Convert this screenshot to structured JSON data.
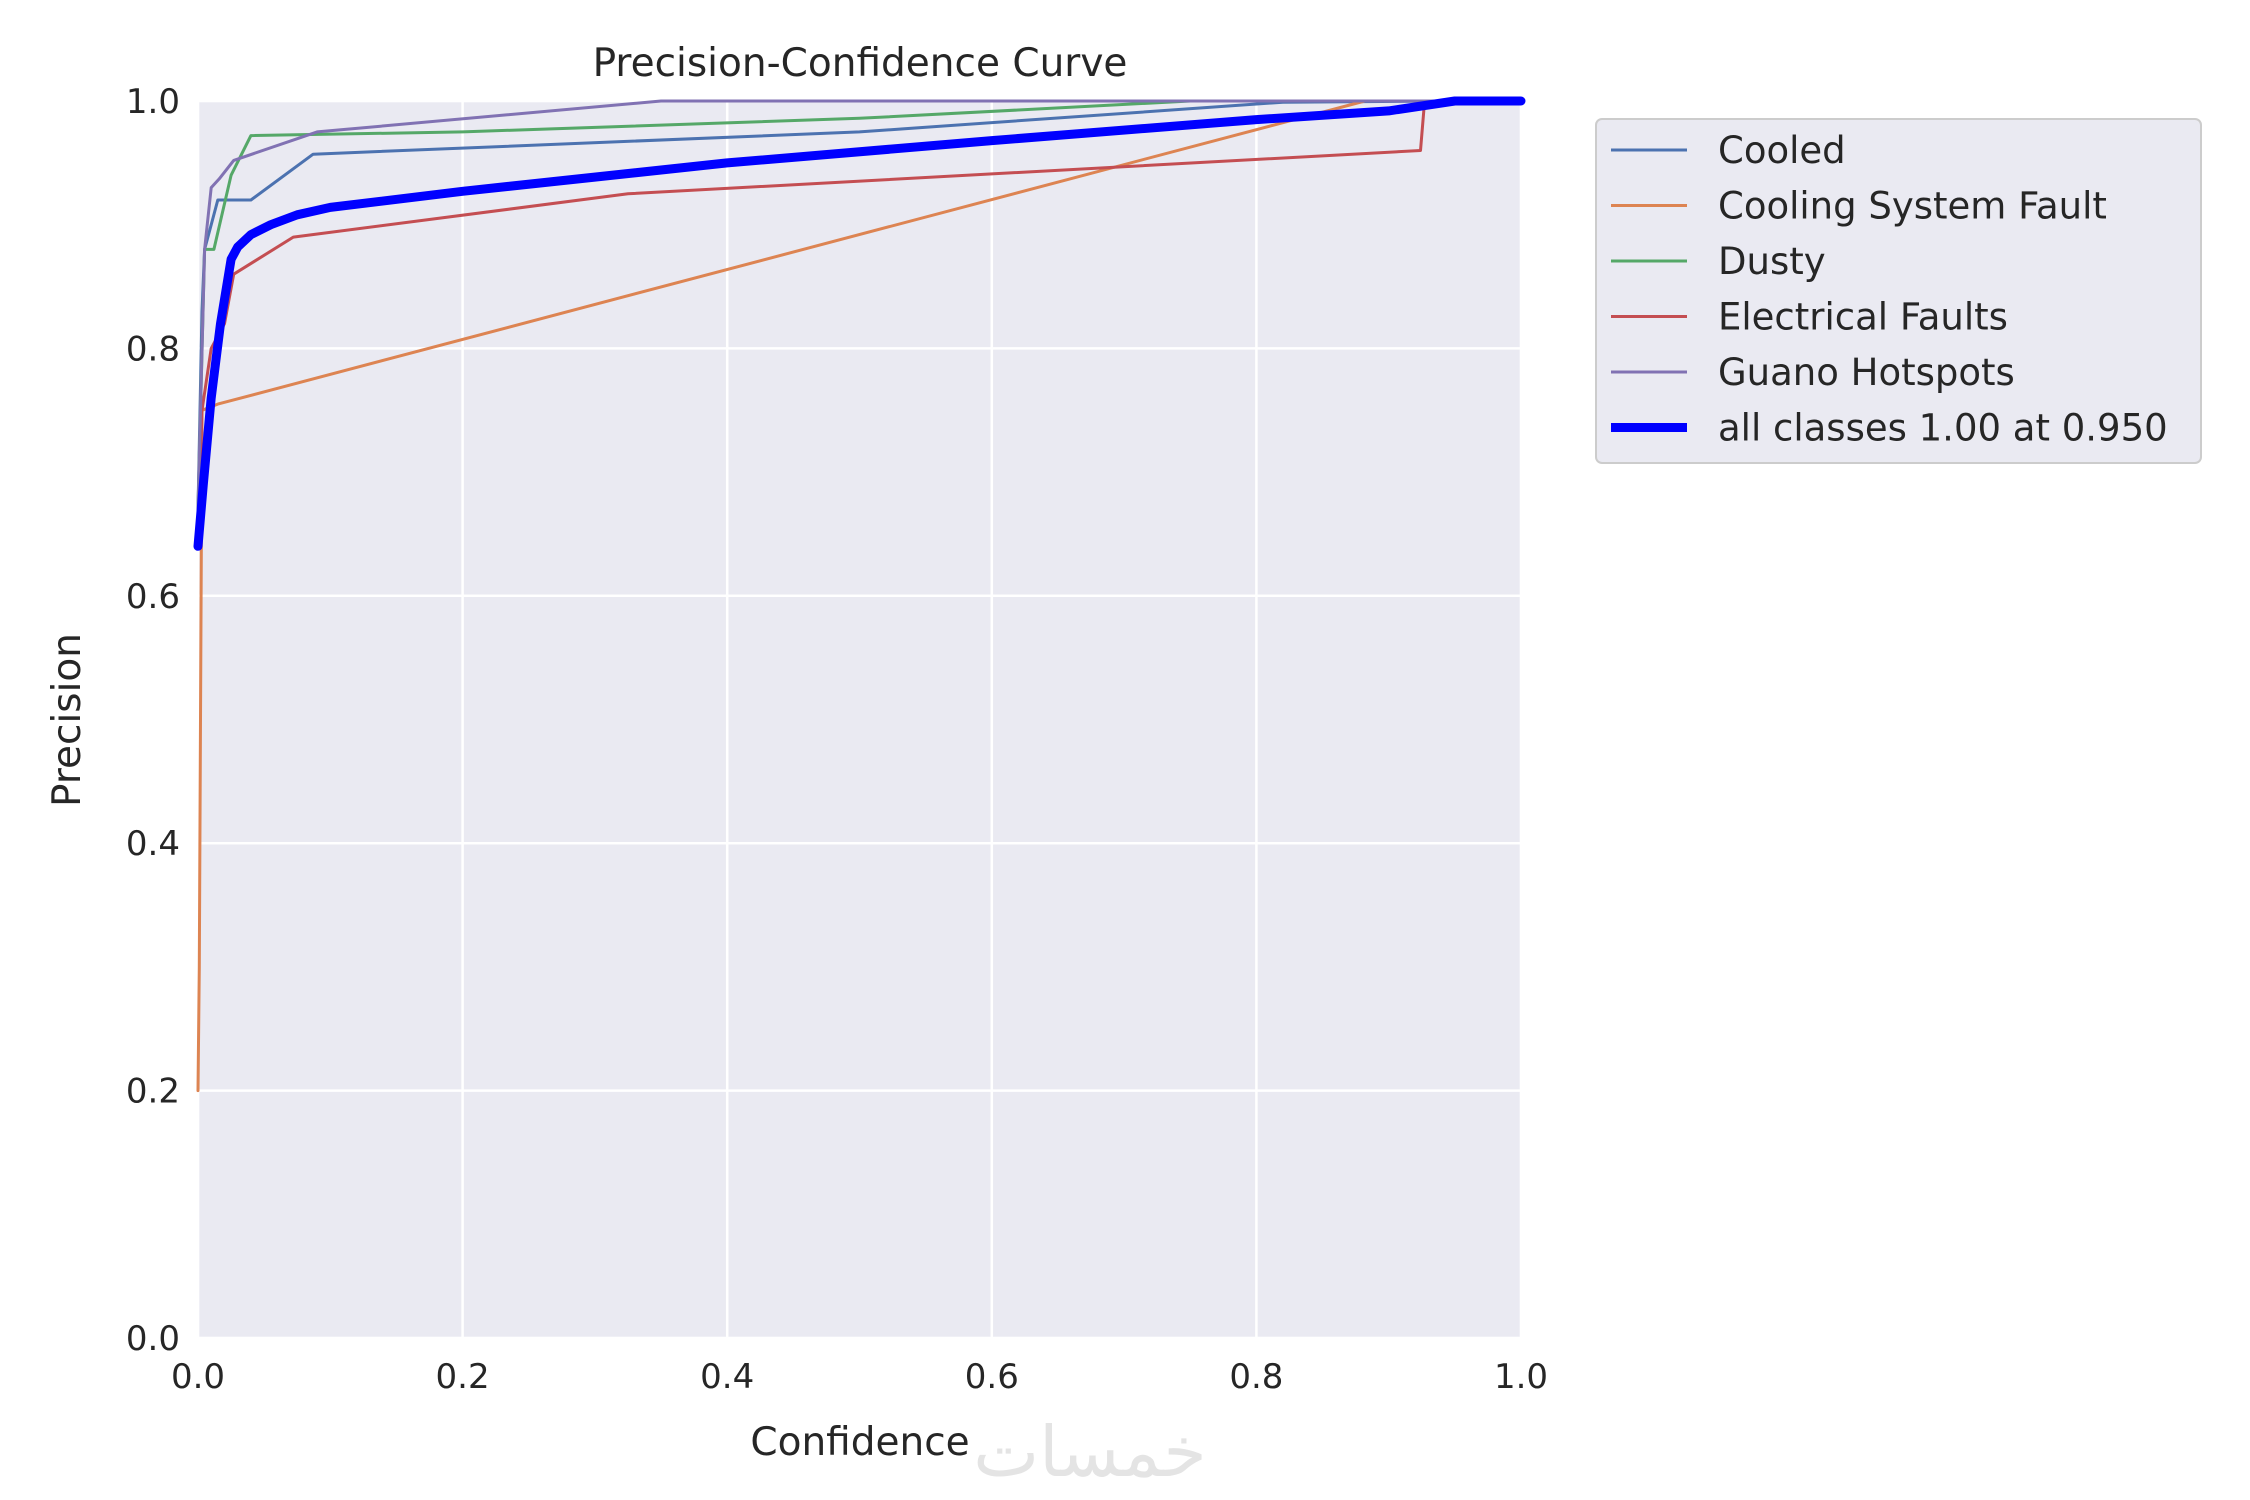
{
  "chart_data": {
    "type": "line",
    "title": "Precision-Confidence Curve",
    "xlabel": "Confidence",
    "ylabel": "Precision",
    "xlim": [
      0,
      1
    ],
    "ylim": [
      0,
      1
    ],
    "x_ticks": [
      "0.0",
      "0.2",
      "0.4",
      "0.6",
      "0.8",
      "1.0"
    ],
    "y_ticks": [
      "0.0",
      "0.2",
      "0.4",
      "0.6",
      "0.8",
      "1.0"
    ],
    "grid": true,
    "legend_position": "outside-top-right",
    "series": [
      {
        "name": "Cooled",
        "color": "#4c72b0",
        "bold": false,
        "points": [
          [
            0.0,
            0.67
          ],
          [
            0.003,
            0.83
          ],
          [
            0.005,
            0.88
          ],
          [
            0.01,
            0.9
          ],
          [
            0.015,
            0.92
          ],
          [
            0.04,
            0.92
          ],
          [
            0.087,
            0.957
          ],
          [
            0.5,
            0.975
          ],
          [
            0.82,
            0.999
          ],
          [
            0.95,
            1.0
          ],
          [
            1.0,
            1.0
          ]
        ]
      },
      {
        "name": "Cooling System Fault",
        "color": "#dd8452",
        "bold": false,
        "points": [
          [
            0.0,
            0.2
          ],
          [
            0.001,
            0.3
          ],
          [
            0.003,
            0.75
          ],
          [
            0.015,
            0.755
          ],
          [
            0.882,
            1.0
          ],
          [
            1.0,
            1.0
          ]
        ]
      },
      {
        "name": "Dusty",
        "color": "#55a868",
        "bold": false,
        "points": [
          [
            0.0,
            0.67
          ],
          [
            0.005,
            0.88
          ],
          [
            0.012,
            0.88
          ],
          [
            0.025,
            0.94
          ],
          [
            0.04,
            0.972
          ],
          [
            0.2,
            0.975
          ],
          [
            0.5,
            0.986
          ],
          [
            0.75,
            1.0
          ],
          [
            1.0,
            1.0
          ]
        ]
      },
      {
        "name": "Electrical Faults",
        "color": "#c44e52",
        "bold": false,
        "points": [
          [
            0.0,
            0.64
          ],
          [
            0.003,
            0.75
          ],
          [
            0.01,
            0.8
          ],
          [
            0.02,
            0.82
          ],
          [
            0.027,
            0.86
          ],
          [
            0.072,
            0.89
          ],
          [
            0.325,
            0.925
          ],
          [
            0.924,
            0.96
          ],
          [
            0.927,
            0.998
          ],
          [
            1.0,
            1.0
          ]
        ]
      },
      {
        "name": "Guano Hotspots",
        "color": "#8172b3",
        "bold": false,
        "points": [
          [
            0.0,
            0.67
          ],
          [
            0.005,
            0.88
          ],
          [
            0.01,
            0.93
          ],
          [
            0.016,
            0.937
          ],
          [
            0.027,
            0.952
          ],
          [
            0.09,
            0.975
          ],
          [
            0.35,
            1.0
          ],
          [
            1.0,
            1.0
          ]
        ]
      },
      {
        "name": "all classes 1.00 at 0.950",
        "color": "#0000ff",
        "bold": true,
        "points": [
          [
            0.0,
            0.64
          ],
          [
            0.004,
            0.69
          ],
          [
            0.01,
            0.76
          ],
          [
            0.017,
            0.82
          ],
          [
            0.025,
            0.872
          ],
          [
            0.03,
            0.882
          ],
          [
            0.04,
            0.892
          ],
          [
            0.055,
            0.9
          ],
          [
            0.075,
            0.908
          ],
          [
            0.1,
            0.914
          ],
          [
            0.2,
            0.927
          ],
          [
            0.4,
            0.95
          ],
          [
            0.6,
            0.968
          ],
          [
            0.8,
            0.985
          ],
          [
            0.9,
            0.992
          ],
          [
            0.95,
            1.0
          ],
          [
            1.0,
            1.0
          ]
        ]
      }
    ]
  },
  "watermark": "خمسات"
}
